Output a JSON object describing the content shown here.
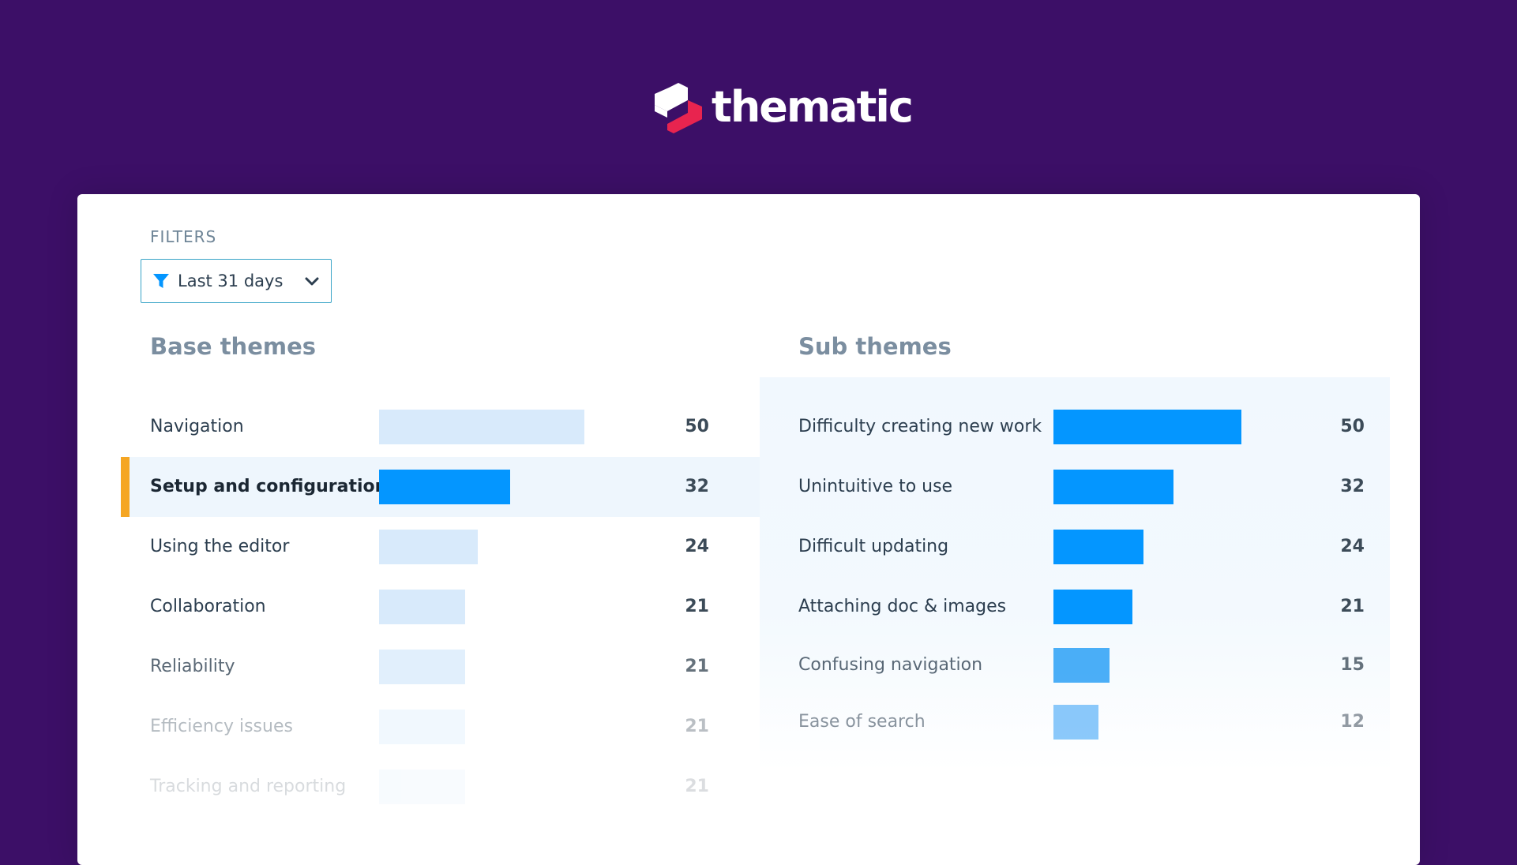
{
  "header": {
    "brand": "thematic",
    "colors": {
      "background": "#3c0f67",
      "logo_red": "#e8244f",
      "logo_white": "#ffffff"
    }
  },
  "filters": {
    "label": "FILTERS",
    "selected": "Last 31 days",
    "icon": "filter-icon",
    "chevron": "chevron-down-icon"
  },
  "base_themes": {
    "title": "Base themes",
    "max": 50,
    "items": [
      {
        "label": "Navigation",
        "value": "50",
        "count": 50
      },
      {
        "label": "Setup and configuration",
        "value": "32",
        "count": 32,
        "selected": true
      },
      {
        "label": "Using the editor",
        "value": "24",
        "count": 24
      },
      {
        "label": "Collaboration",
        "value": "21",
        "count": 21
      },
      {
        "label": "Reliability",
        "value": "21",
        "count": 21
      },
      {
        "label": "Efficiency issues",
        "value": "21",
        "count": 21
      },
      {
        "label": "Tracking and reporting",
        "value": "21",
        "count": 21
      }
    ]
  },
  "sub_themes": {
    "title": "Sub themes",
    "max": 50,
    "items": [
      {
        "label": "Difficulty creating new work",
        "value": "50",
        "count": 50
      },
      {
        "label": "Unintuitive to use",
        "value": "32",
        "count": 32
      },
      {
        "label": "Difficult updating",
        "value": "24",
        "count": 24
      },
      {
        "label": "Attaching doc & images",
        "value": "21",
        "count": 21
      },
      {
        "label": "Confusing navigation",
        "value": "15",
        "count": 15
      },
      {
        "label": "Ease of search",
        "value": "12",
        "count": 12
      }
    ]
  },
  "accent_colors": {
    "bar_active": "#0496ff",
    "bar_inactive": "#d8eafb",
    "selected_marker": "#f5a623"
  }
}
